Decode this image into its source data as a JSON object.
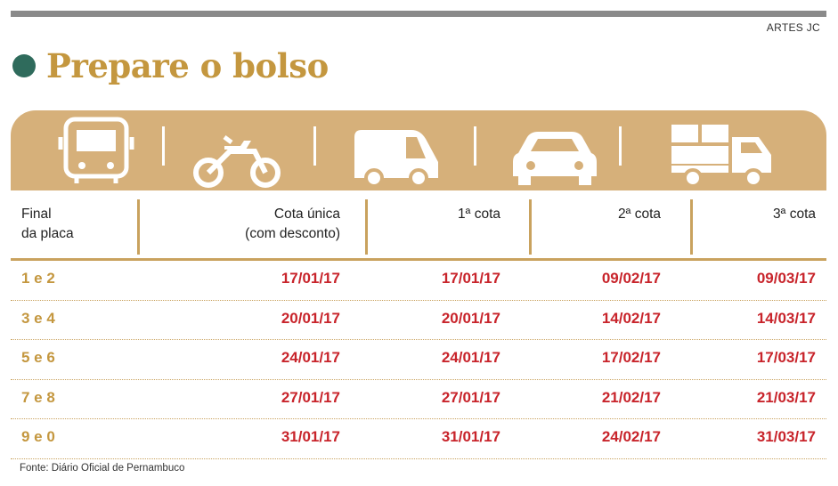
{
  "credit": "ARTES JC",
  "title": "Prepare o bolso",
  "icons": [
    "bus-icon",
    "motorcycle-icon",
    "van-icon",
    "car-icon",
    "truck-icon"
  ],
  "colors": {
    "accent": "#c4973f",
    "band": "#d6b07a",
    "dates": "#c8242b",
    "dot": "#2f6b5c"
  },
  "table": {
    "headers": {
      "col0_line1": "Final",
      "col0_line2": "da placa",
      "col1_line1": "Cota única",
      "col1_line2": "(com desconto)",
      "col2": "1ª cota",
      "col3": "2ª cota",
      "col4": "3ª cota"
    },
    "rows": [
      {
        "label": "1 e 2",
        "c1": "17/01/17",
        "c2": "17/01/17",
        "c3": "09/02/17",
        "c4": "09/03/17"
      },
      {
        "label": "3 e 4",
        "c1": "20/01/17",
        "c2": "20/01/17",
        "c3": "14/02/17",
        "c4": "14/03/17"
      },
      {
        "label": "5 e 6",
        "c1": "24/01/17",
        "c2": "24/01/17",
        "c3": "17/02/17",
        "c4": "17/03/17"
      },
      {
        "label": "7 e 8",
        "c1": "27/01/17",
        "c2": "27/01/17",
        "c3": "21/02/17",
        "c4": "21/03/17"
      },
      {
        "label": "9 e 0",
        "c1": "31/01/17",
        "c2": "31/01/17",
        "c3": "24/02/17",
        "c4": "31/03/17"
      }
    ]
  },
  "source": "Fonte: Diário Oficial de Pernambuco"
}
